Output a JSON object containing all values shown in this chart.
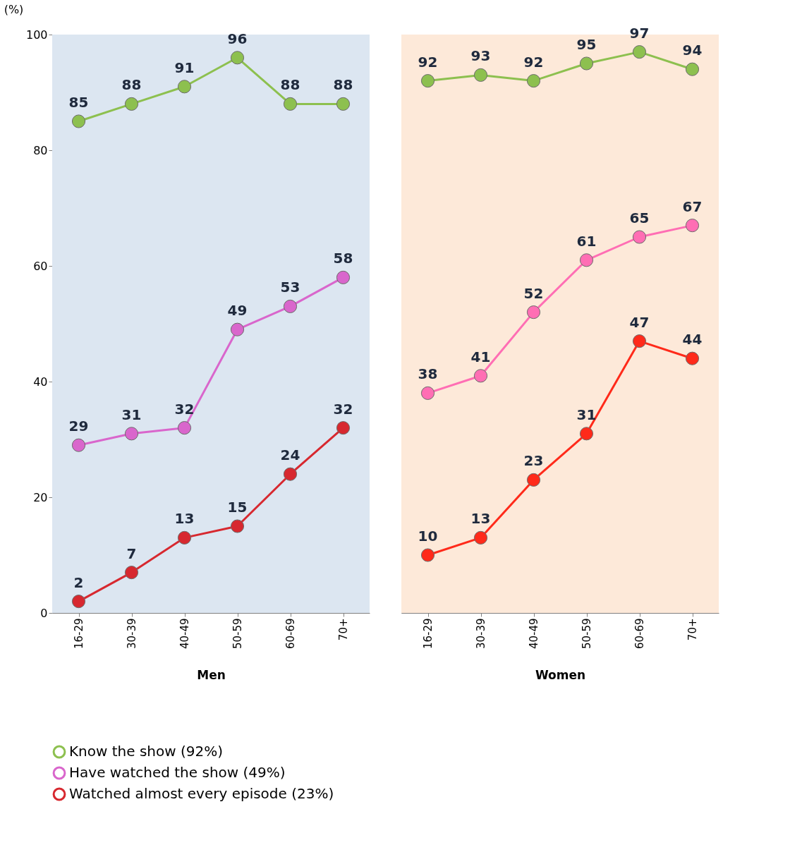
{
  "chart_data": [
    {
      "type": "line",
      "categories": [
        "16-29",
        "30-39",
        "40-49",
        "50-59",
        "60-69",
        "70+"
      ],
      "xlabel": "Men",
      "ylabel": "(%)",
      "ylim": [
        0,
        100
      ],
      "yticks": [
        0,
        20,
        40,
        60,
        80,
        100
      ],
      "grid": false,
      "marker": "circle",
      "data_labels": true,
      "legend": "bottom",
      "bands": [
        {
          "axis": "y",
          "from": 0,
          "to": 100,
          "color": "#dce6f1"
        }
      ],
      "series": [
        {
          "name": "Know the show (92%)",
          "color": "#8dc04f",
          "values": [
            85,
            88,
            91,
            96,
            88,
            88
          ]
        },
        {
          "name": "Have watched the show (49%)",
          "color": "#d966cc",
          "values": [
            29,
            31,
            32,
            49,
            53,
            58
          ]
        },
        {
          "name": "Watched almost every episode (23%)",
          "color": "#d7282f",
          "values": [
            2,
            7,
            13,
            15,
            24,
            32
          ]
        }
      ]
    },
    {
      "type": "line",
      "categories": [
        "16-29",
        "30-39",
        "40-49",
        "50-59",
        "60-69",
        "70+"
      ],
      "xlabel": "Women",
      "ylim": [
        0,
        100
      ],
      "tick_labels": "x",
      "grid": false,
      "marker": "circle",
      "data_labels": true,
      "bands": [
        {
          "axis": "y",
          "from": 0,
          "to": 100,
          "color": "#fde9d9"
        }
      ],
      "series": [
        {
          "color": "#8dc04f",
          "values": [
            92,
            93,
            92,
            95,
            97,
            94
          ]
        },
        {
          "color": "#ff6eb4",
          "values": [
            38,
            41,
            52,
            61,
            65,
            67
          ]
        },
        {
          "color": "#ff2a1a",
          "values": [
            10,
            13,
            23,
            31,
            47,
            44
          ]
        }
      ]
    }
  ]
}
